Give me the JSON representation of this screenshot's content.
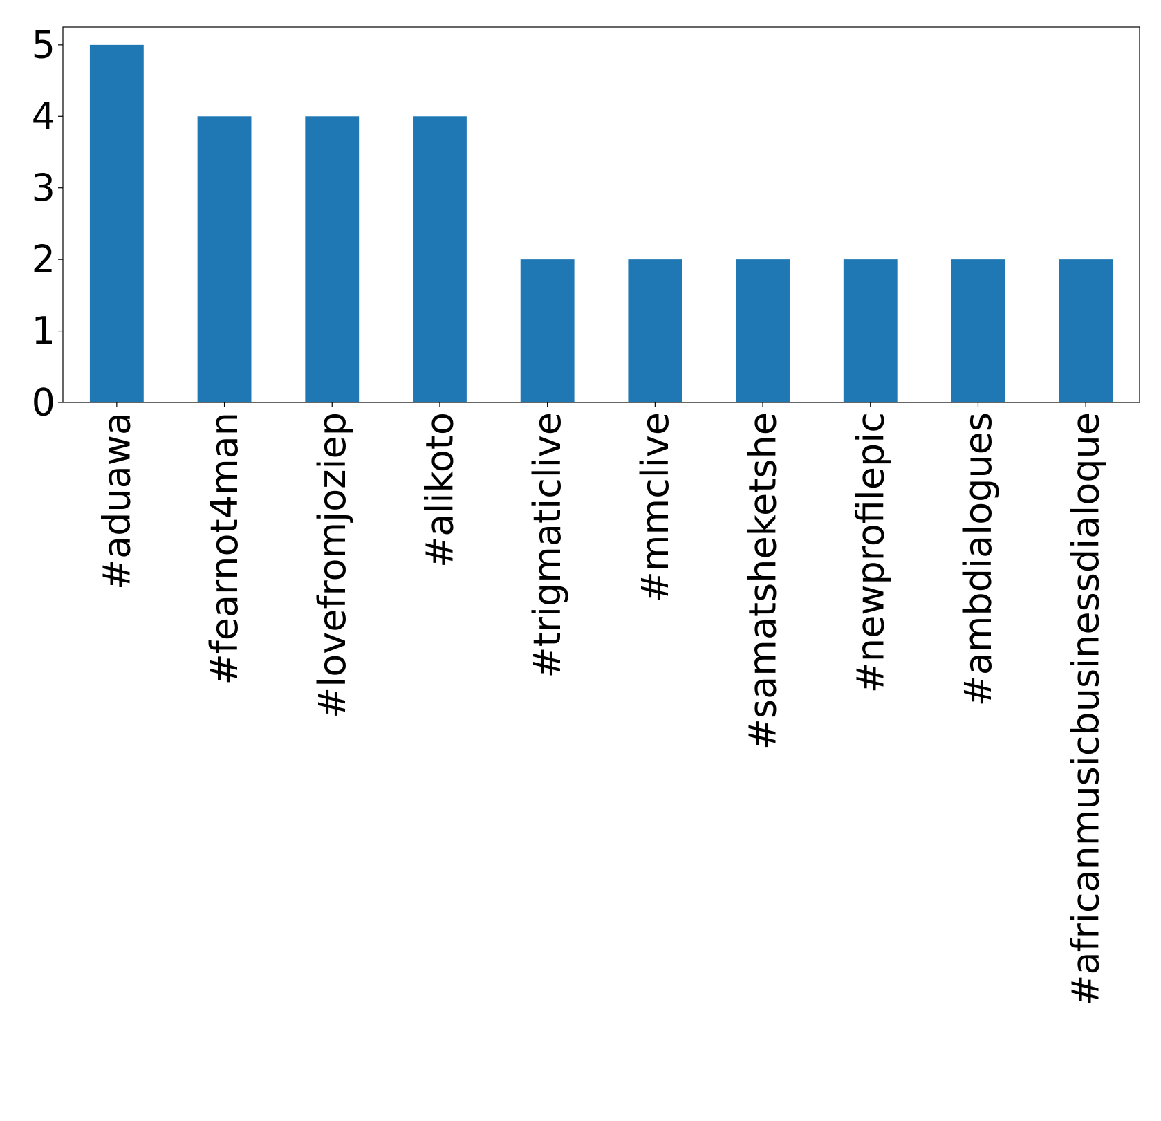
{
  "chart_data": {
    "type": "bar",
    "title": "",
    "xlabel": "",
    "ylabel": "",
    "categories": [
      "#aduawa",
      "#fearnot4man",
      "#lovefromjoziep",
      "#alikoto",
      "#trigmaticlive",
      "#mmclive",
      "#samatsheketshe",
      "#newprofilepic",
      "#ambdialogues",
      "#africanmusicbusinessdialoque"
    ],
    "values": [
      5,
      4,
      4,
      4,
      2,
      2,
      2,
      2,
      2,
      2
    ],
    "ylim": [
      0,
      5.25
    ],
    "yticks": [
      "0",
      "1",
      "2",
      "3",
      "4",
      "5"
    ],
    "bar_color": "#1f77b4",
    "grid": false,
    "legend": "none"
  }
}
